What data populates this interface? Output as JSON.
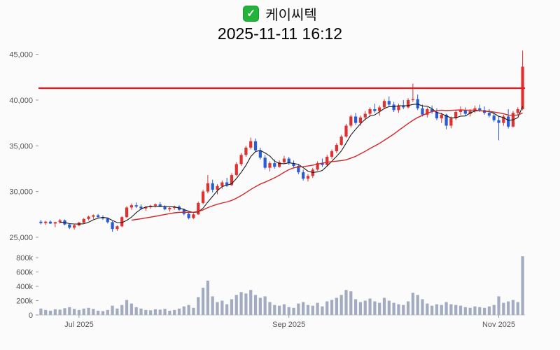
{
  "header": {
    "title": "케이씨텍",
    "timestamp": "2025-11-11 16:12",
    "check_icon": "✓",
    "check_color": "#23b33a"
  },
  "chart_data": {
    "type": "candlestick",
    "title": "케이씨텍",
    "subtitle": "2025-11-11 16:12",
    "y_axis": {
      "ticks": [
        25000,
        30000,
        35000,
        40000,
        45000
      ],
      "labels": [
        "25,000",
        "30,000",
        "35,000",
        "40,000",
        "45,000"
      ],
      "range": [
        24000,
        46500
      ]
    },
    "volume_axis": {
      "ticks": [
        0,
        200000,
        400000,
        600000,
        800000
      ],
      "labels": [
        "0",
        "200k",
        "400k",
        "600k",
        "800k"
      ],
      "range": [
        0,
        860000
      ]
    },
    "x_ticks": [
      {
        "index": 8,
        "label": "Jul 2025"
      },
      {
        "index": 52,
        "label": "Sep 2025"
      },
      {
        "index": 96,
        "label": "Nov 2025"
      }
    ],
    "reference_line": {
      "value": 41300,
      "color": "#e51c23"
    },
    "moving_averages": [
      {
        "period": 5,
        "color": "#1a1a1a"
      },
      {
        "period": 20,
        "color": "#d62728"
      }
    ],
    "colors": {
      "up": "#e03131",
      "down": "#2a5cd5",
      "volume": "#a3abc0"
    },
    "candles": [
      [
        26700,
        26900,
        26400,
        26550,
        90000
      ],
      [
        26550,
        26800,
        26350,
        26700,
        70000
      ],
      [
        26700,
        26850,
        26450,
        26500,
        60000
      ],
      [
        26500,
        26700,
        26100,
        26650,
        80000
      ],
      [
        26650,
        27000,
        26500,
        26850,
        75000
      ],
      [
        26850,
        26950,
        26300,
        26400,
        95000
      ],
      [
        26400,
        26500,
        25900,
        26050,
        110000
      ],
      [
        26050,
        26400,
        25850,
        26300,
        85000
      ],
      [
        26300,
        26700,
        26200,
        26600,
        70000
      ],
      [
        26600,
        27100,
        26500,
        27000,
        90000
      ],
      [
        27000,
        27350,
        26850,
        27250,
        100000
      ],
      [
        27250,
        27500,
        27000,
        27400,
        85000
      ],
      [
        27400,
        27550,
        27100,
        27200,
        60000
      ],
      [
        27200,
        27400,
        26900,
        27050,
        55000
      ],
      [
        27050,
        27150,
        26500,
        26650,
        70000
      ],
      [
        26650,
        26750,
        25600,
        25900,
        130000
      ],
      [
        25900,
        26300,
        25700,
        26200,
        90000
      ],
      [
        26200,
        27300,
        26100,
        27200,
        140000
      ],
      [
        27200,
        28400,
        27100,
        28250,
        210000
      ],
      [
        28250,
        28700,
        28000,
        28500,
        160000
      ],
      [
        28500,
        28800,
        28200,
        28350,
        110000
      ],
      [
        28350,
        28600,
        28000,
        28150,
        90000
      ],
      [
        28150,
        28400,
        27900,
        28300,
        70000
      ],
      [
        28300,
        28550,
        28100,
        28450,
        65000
      ],
      [
        28450,
        28700,
        28250,
        28600,
        80000
      ],
      [
        28600,
        28850,
        28300,
        28400,
        75000
      ],
      [
        28400,
        28500,
        27950,
        28050,
        85000
      ],
      [
        28050,
        28300,
        27800,
        28200,
        60000
      ],
      [
        28200,
        28450,
        28000,
        28350,
        70000
      ],
      [
        28350,
        28500,
        27900,
        28000,
        90000
      ],
      [
        28000,
        28150,
        27400,
        27550,
        120000
      ],
      [
        27550,
        27750,
        26950,
        27100,
        140000
      ],
      [
        27100,
        27600,
        27000,
        27500,
        100000
      ],
      [
        27500,
        28900,
        27450,
        28750,
        250000
      ],
      [
        28750,
        30200,
        28600,
        30000,
        380000
      ],
      [
        30000,
        31800,
        29800,
        30900,
        480000
      ],
      [
        30900,
        31300,
        29900,
        30200,
        260000
      ],
      [
        30200,
        30800,
        29700,
        30600,
        180000
      ],
      [
        30600,
        31200,
        30300,
        31000,
        200000
      ],
      [
        31000,
        31500,
        30500,
        30700,
        150000
      ],
      [
        30700,
        32000,
        30600,
        31800,
        220000
      ],
      [
        31800,
        33200,
        31700,
        33000,
        280000
      ],
      [
        33000,
        34200,
        32800,
        34000,
        320000
      ],
      [
        34000,
        35000,
        33800,
        34800,
        300000
      ],
      [
        34800,
        35900,
        34600,
        35500,
        350000
      ],
      [
        35500,
        35800,
        34300,
        34500,
        280000
      ],
      [
        34500,
        34800,
        33500,
        33700,
        240000
      ],
      [
        33700,
        34000,
        32400,
        32600,
        260000
      ],
      [
        32600,
        33300,
        32200,
        33100,
        180000
      ],
      [
        33100,
        33500,
        32500,
        32700,
        140000
      ],
      [
        32700,
        33400,
        32600,
        33200,
        130000
      ],
      [
        33200,
        33900,
        33000,
        33600,
        150000
      ],
      [
        33600,
        33800,
        32900,
        33100,
        110000
      ],
      [
        33100,
        33400,
        32600,
        32800,
        100000
      ],
      [
        32800,
        33000,
        31900,
        32100,
        160000
      ],
      [
        32100,
        32400,
        31200,
        31400,
        180000
      ],
      [
        31400,
        31900,
        31100,
        31700,
        140000
      ],
      [
        31700,
        32600,
        31500,
        32400,
        130000
      ],
      [
        32400,
        33300,
        32300,
        33100,
        170000
      ],
      [
        33100,
        33600,
        32700,
        32900,
        120000
      ],
      [
        32900,
        34000,
        32800,
        33800,
        190000
      ],
      [
        33800,
        34600,
        33600,
        34400,
        210000
      ],
      [
        34400,
        35300,
        34200,
        35100,
        240000
      ],
      [
        35100,
        36200,
        35000,
        36000,
        280000
      ],
      [
        36000,
        37400,
        35900,
        37200,
        350000
      ],
      [
        37200,
        38400,
        37000,
        38200,
        330000
      ],
      [
        38200,
        38600,
        37300,
        37500,
        220000
      ],
      [
        37500,
        38300,
        37200,
        38100,
        180000
      ],
      [
        38100,
        38800,
        37800,
        38500,
        200000
      ],
      [
        38500,
        39200,
        38200,
        39000,
        230000
      ],
      [
        39000,
        39600,
        38600,
        38800,
        190000
      ],
      [
        38800,
        39400,
        38300,
        39200,
        170000
      ],
      [
        39200,
        40100,
        39000,
        39900,
        240000
      ],
      [
        39900,
        40400,
        39300,
        39500,
        200000
      ],
      [
        39500,
        39800,
        38700,
        38900,
        170000
      ],
      [
        38900,
        39600,
        38600,
        39400,
        150000
      ],
      [
        39400,
        40000,
        39000,
        39200,
        140000
      ],
      [
        39200,
        40200,
        39100,
        40000,
        190000
      ],
      [
        40000,
        41800,
        39800,
        40100,
        310000
      ],
      [
        40100,
        40600,
        38900,
        39100,
        280000
      ],
      [
        39100,
        39500,
        38200,
        38400,
        220000
      ],
      [
        38400,
        39200,
        38100,
        39000,
        160000
      ],
      [
        39000,
        39400,
        38500,
        38700,
        130000
      ],
      [
        38700,
        39100,
        37800,
        38000,
        150000
      ],
      [
        38000,
        38600,
        37500,
        38400,
        140000
      ],
      [
        38400,
        38500,
        36800,
        37200,
        180000
      ],
      [
        37200,
        38200,
        36900,
        38000,
        150000
      ],
      [
        38000,
        38900,
        37800,
        38700,
        140000
      ],
      [
        38700,
        39300,
        38400,
        38900,
        130000
      ],
      [
        38900,
        39200,
        38300,
        38500,
        110000
      ],
      [
        38500,
        39000,
        38200,
        38800,
        100000
      ],
      [
        38800,
        39400,
        38600,
        39100,
        120000
      ],
      [
        39100,
        39500,
        38700,
        38900,
        110000
      ],
      [
        38900,
        39300,
        38400,
        38600,
        100000
      ],
      [
        38600,
        39000,
        38100,
        38300,
        120000
      ],
      [
        38300,
        38700,
        37600,
        37800,
        140000
      ],
      [
        37800,
        38200,
        35600,
        37500,
        260000
      ],
      [
        37500,
        38400,
        37200,
        38200,
        170000
      ],
      [
        38200,
        39000,
        36900,
        37100,
        190000
      ],
      [
        37100,
        38800,
        37000,
        38600,
        210000
      ],
      [
        38600,
        39200,
        38300,
        39000,
        180000
      ],
      [
        39000,
        45400,
        38900,
        43650,
        820000
      ]
    ]
  }
}
